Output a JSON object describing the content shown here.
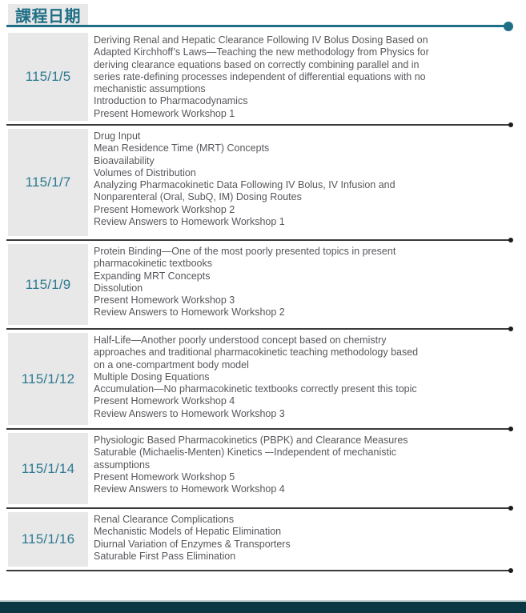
{
  "page": {
    "title": "課程日期",
    "colors": {
      "accent": "#1f6f87",
      "date_color": "#2d7a92",
      "body_color": "#56575b",
      "cell_bg": "#e8e8e8",
      "separator": "#3a3a3a",
      "separator_dot": "#1c1c1c",
      "footer": "#0c3844"
    }
  },
  "table": {
    "rows": [
      {
        "date": "115/1/5",
        "topics": [
          "Deriving Renal and Hepatic Clearance Following IV Bolus Dosing Based on\nAdapted Kirchhoff’s Laws—Teaching the new methodology from Physics for\nderiving clearance equations based on correctly combining parallel and in\nseries rate-defining processes independent of differential equations with no\nmechanistic assumptions",
          "Introduction to Pharmacodynamics",
          "Present Homework Workshop 1"
        ]
      },
      {
        "date": "115/1/7",
        "topics": [
          "Drug Input",
          "Mean Residence Time (MRT) Concepts",
          "Bioavailability",
          "Volumes of Distribution",
          "Analyzing Pharmacokinetic Data Following IV Bolus, IV Infusion and\nNonparenteral (Oral, SubQ, IM) Dosing Routes",
          "Present Homework Workshop 2",
          "Review Answers to Homework Workshop 1"
        ]
      },
      {
        "date": "115/1/9",
        "topics": [
          "Protein Binding—One of the most poorly presented topics in present\npharmacokinetic textbooks",
          "Expanding MRT Concepts",
          "Dissolution",
          "Present Homework Workshop 3",
          "Review Answers to Homework Workshop 2"
        ]
      },
      {
        "date": "115/1/12",
        "topics": [
          "Half-Life—Another poorly understood concept based on chemistry\napproaches and traditional pharmacokinetic teaching methodology based\non a one-compartment body model",
          "Multiple Dosing Equations",
          "Accumulation—No pharmacokinetic textbooks correctly present this topic",
          "Present Homework Workshop 4",
          "Review Answers to Homework Workshop 3"
        ]
      },
      {
        "date": "115/1/14",
        "topics": [
          "Physiologic Based Pharmacokinetics (PBPK) and Clearance Measures",
          "Saturable (Michaelis-Menten) Kinetics –-Independent of mechanistic\nassumptions",
          "Present Homework Workshop 5",
          "Review Answers to Homework Workshop 4"
        ]
      },
      {
        "date": "115/1/16",
        "topics": [
          "Renal Clearance Complications",
          "Mechanistic Models of Hepatic Elimination",
          "Diurnal Variation of Enzymes & Transporters",
          "Saturable First Pass Elimination"
        ]
      }
    ]
  }
}
